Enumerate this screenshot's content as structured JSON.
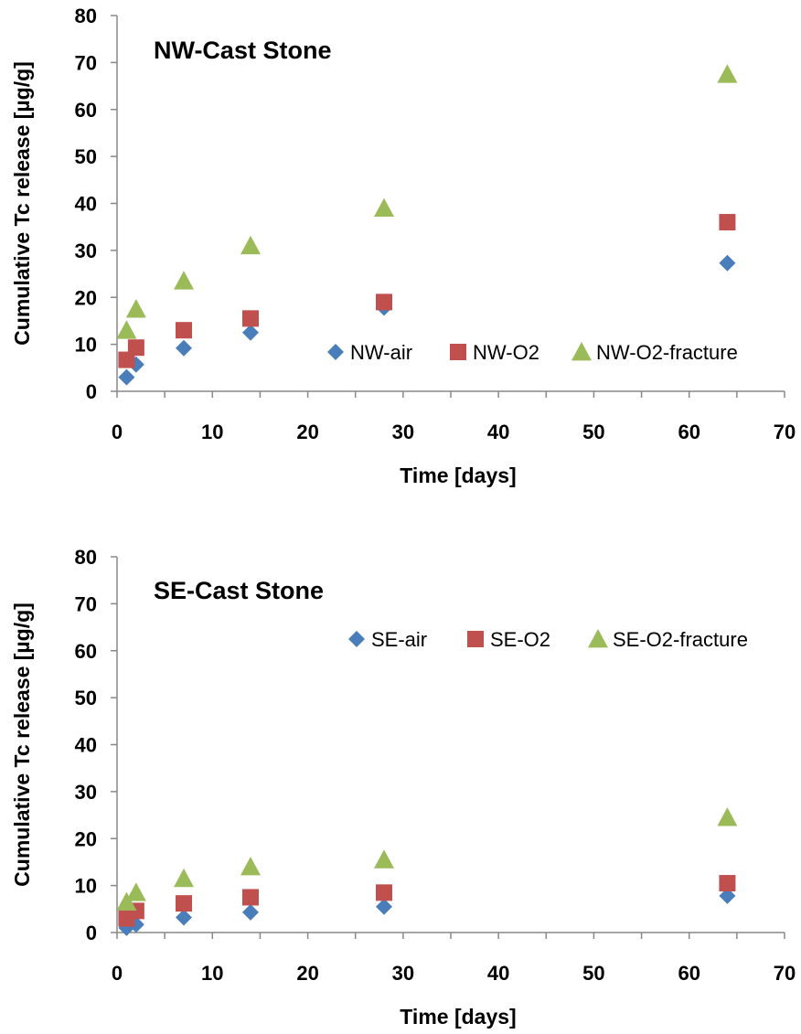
{
  "chart_data": [
    {
      "type": "scatter",
      "title": "NW-Cast Stone",
      "xlabel": "Time [days]",
      "ylabel": "Cumulative Tc release [µg/g]",
      "xlim": [
        0,
        70
      ],
      "ylim": [
        0,
        80
      ],
      "xticks": [
        0,
        10,
        20,
        30,
        40,
        50,
        60,
        70
      ],
      "yticks": [
        0,
        10,
        20,
        30,
        40,
        50,
        60,
        70,
        80
      ],
      "grid": false,
      "legend_position": "lower-right",
      "series": [
        {
          "name": "NW-air",
          "marker": "diamond",
          "color": "#4A7EBB",
          "x": [
            1,
            2,
            7,
            14,
            28,
            64
          ],
          "y": [
            3.0,
            5.7,
            9.2,
            12.5,
            17.8,
            27.3
          ]
        },
        {
          "name": "NW-O2",
          "marker": "square",
          "color": "#C0504D",
          "x": [
            1,
            2,
            7,
            14,
            28,
            64
          ],
          "y": [
            6.7,
            9.3,
            13.0,
            15.5,
            19.0,
            36.0
          ]
        },
        {
          "name": "NW-O2-fracture",
          "marker": "triangle",
          "color": "#9BBB59",
          "x": [
            1,
            2,
            7,
            14,
            28,
            64
          ],
          "y": [
            13.0,
            17.5,
            23.5,
            31.0,
            39.0,
            67.5
          ]
        }
      ]
    },
    {
      "type": "scatter",
      "title": "SE-Cast Stone",
      "xlabel": "Time [days]",
      "ylabel": "Cumulative Tc release [µg/g]",
      "xlim": [
        0,
        70
      ],
      "ylim": [
        0,
        80
      ],
      "xticks": [
        0,
        10,
        20,
        30,
        40,
        50,
        60,
        70
      ],
      "yticks": [
        0,
        10,
        20,
        30,
        40,
        50,
        60,
        70,
        80
      ],
      "grid": false,
      "legend_position": "top-right",
      "series": [
        {
          "name": "SE-air",
          "marker": "diamond",
          "color": "#4A7EBB",
          "x": [
            1,
            2,
            7,
            14,
            28,
            64
          ],
          "y": [
            1.0,
            1.7,
            3.2,
            4.3,
            5.5,
            7.8
          ]
        },
        {
          "name": "SE-O2",
          "marker": "square",
          "color": "#C0504D",
          "x": [
            1,
            2,
            7,
            14,
            28,
            64
          ],
          "y": [
            3.0,
            4.6,
            6.2,
            7.5,
            8.5,
            10.5
          ]
        },
        {
          "name": "SE-O2-fracture",
          "marker": "triangle",
          "color": "#9BBB59",
          "x": [
            1,
            2,
            7,
            14,
            28,
            64
          ],
          "y": [
            6.5,
            8.5,
            11.5,
            14.0,
            15.5,
            24.5
          ]
        }
      ]
    }
  ]
}
